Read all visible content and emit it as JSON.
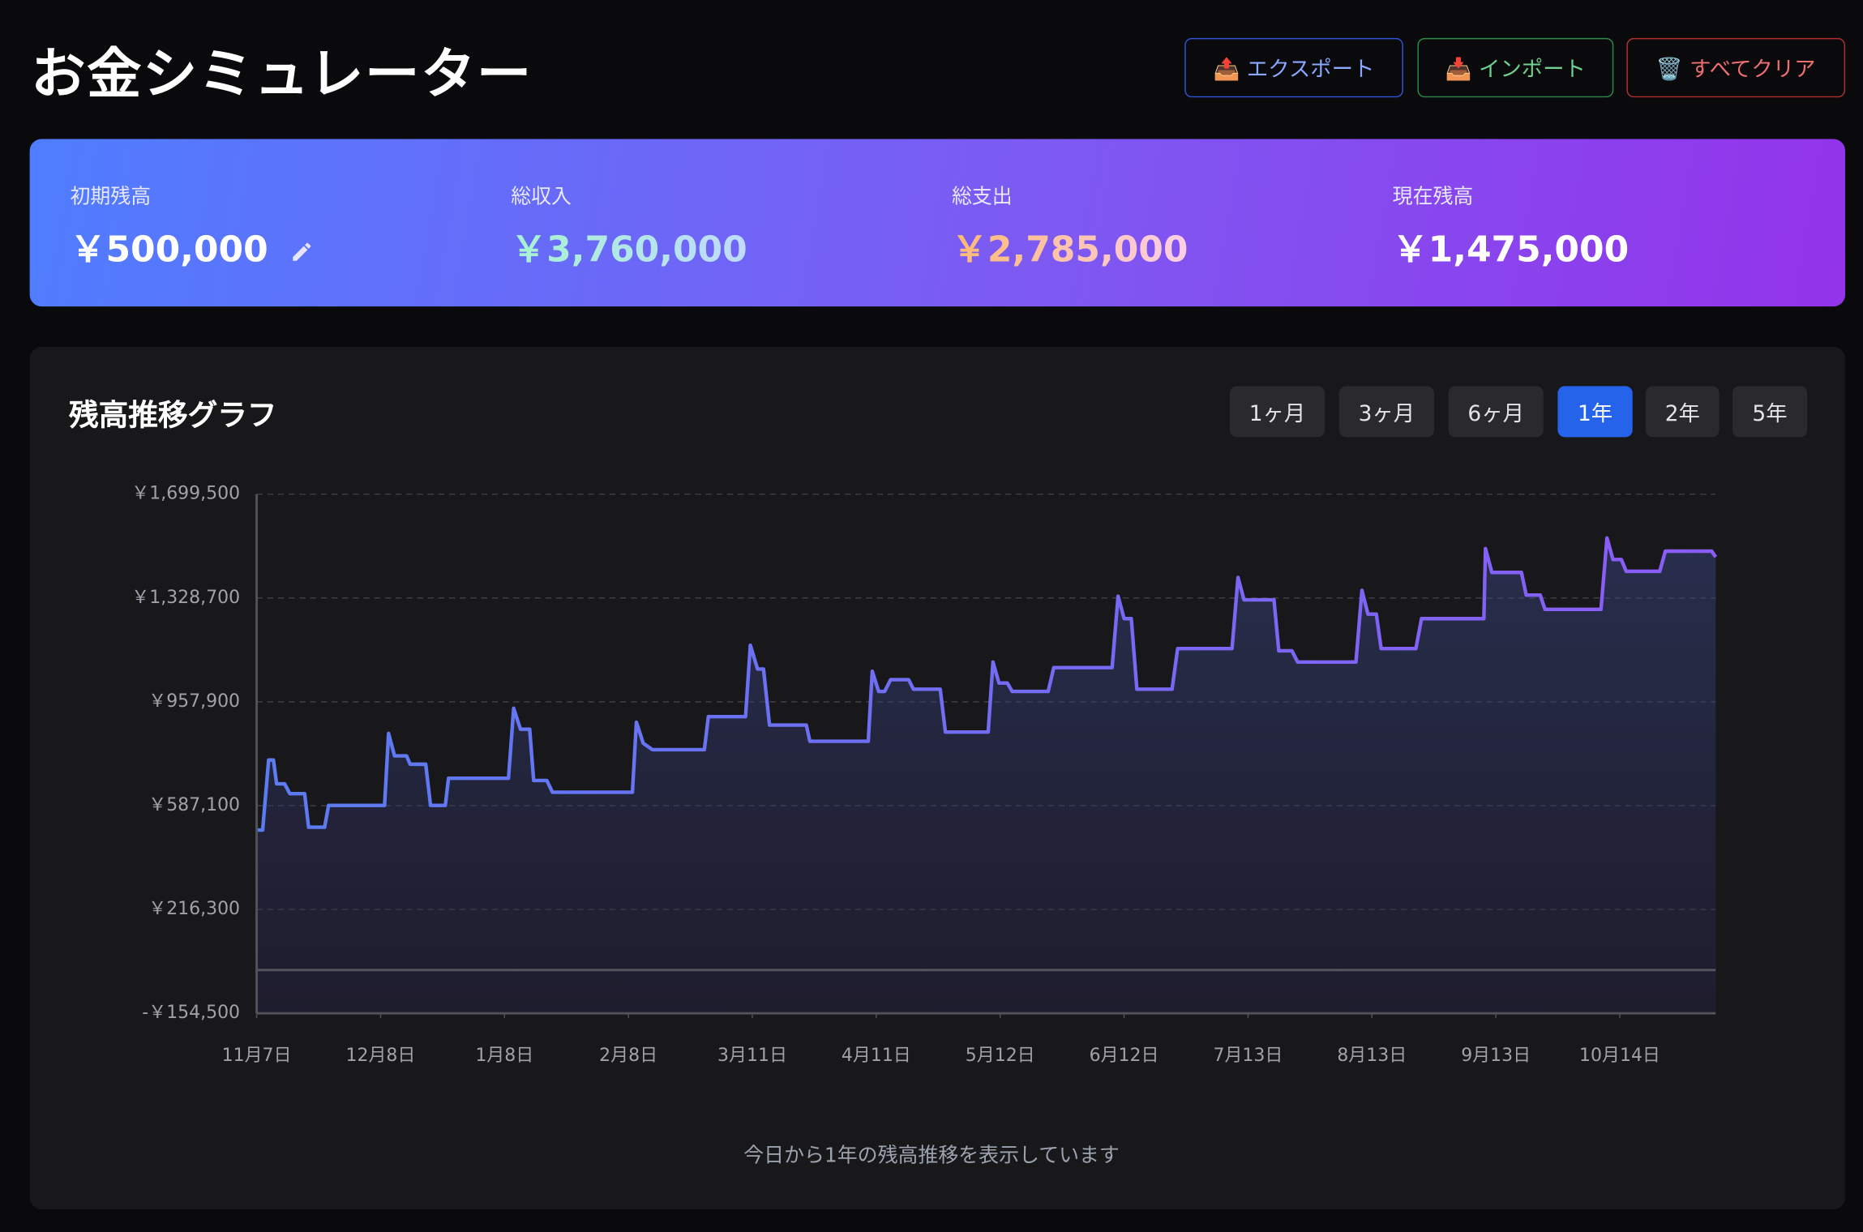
{
  "header": {
    "title": "お金シミュレーター",
    "buttons": [
      "📤 エクスポート",
      "📥 インポート",
      "🗑️ すべてクリア"
    ]
  },
  "summary": {
    "cards": [
      {
        "label": "初期残高",
        "value": "￥500,000"
      },
      {
        "label": "総収入",
        "value": "￥3,760,000"
      },
      {
        "label": "総支出",
        "value": "￥2,785,000"
      },
      {
        "label": "現在残高",
        "value": "￥1,475,000"
      }
    ]
  },
  "range_selector": {
    "options": [
      "1ヶ月",
      "3ヶ月",
      "6ヶ月",
      "1年",
      "2年",
      "5年"
    ],
    "active_index": 3
  },
  "chart_data": {
    "type": "line",
    "title": "残高推移グラフ",
    "xlim": [
      0,
      365
    ],
    "xticks": [
      {
        "value": 0,
        "label": "11月7日"
      },
      {
        "value": 31,
        "label": "12月8日"
      },
      {
        "value": 62,
        "label": "1月8日"
      },
      {
        "value": 93,
        "label": "2月8日"
      },
      {
        "value": 124,
        "label": "3月11日"
      },
      {
        "value": 155,
        "label": "4月11日"
      },
      {
        "value": 186,
        "label": "5月12日"
      },
      {
        "value": 217,
        "label": "6月12日"
      },
      {
        "value": 248,
        "label": "7月13日"
      },
      {
        "value": 279,
        "label": "8月13日"
      },
      {
        "value": 310,
        "label": "9月13日"
      },
      {
        "value": 341,
        "label": "10月14日"
      }
    ],
    "ylim": [
      -154500,
      1699500
    ],
    "yticks": [
      {
        "value": -154500,
        "label": "-￥154,500"
      },
      {
        "value": 216300,
        "label": "￥216,300"
      },
      {
        "value": 587100,
        "label": "￥587,100"
      },
      {
        "value": 957900,
        "label": "￥957,900"
      },
      {
        "value": 1328700,
        "label": "￥1,328,700"
      },
      {
        "value": 1699500,
        "label": "￥1,699,500"
      }
    ],
    "grid": true,
    "series": [
      {
        "name": "残高",
        "color": "#5b7cf0",
        "x": [
          0,
          1.5,
          3,
          4.2,
          5,
          7,
          8.3,
          12,
          13,
          17,
          18,
          32,
          33,
          34.5,
          37.5,
          38.4,
          42.3,
          43.5,
          47.2,
          48,
          63,
          64.3,
          66,
          68.3,
          69.3,
          72.6,
          74,
          94,
          95,
          96.7,
          99,
          112,
          113,
          122.3,
          123.5,
          125.3,
          126.8,
          128.3,
          137.5,
          138.4,
          153,
          154,
          155.6,
          157.1,
          158.6,
          163.1,
          164.3,
          171,
          172.3,
          183,
          184.2,
          185.7,
          187.8,
          189,
          198,
          199.4,
          214,
          215.5,
          217,
          218.8,
          220.2,
          229,
          230.4,
          244,
          245.5,
          247,
          254.5,
          255.7,
          259,
          260.4,
          275,
          276.5,
          278,
          280.1,
          281.3,
          290,
          291.4,
          307,
          307.4,
          309,
          316.4,
          317.6,
          321.1,
          322.3,
          336.3,
          337.8,
          339.3,
          341.4,
          342.6,
          351,
          352.4,
          364,
          365
        ],
        "values": [
          500000,
          500000,
          750000,
          750000,
          665000,
          665000,
          630000,
          630000,
          510000,
          510000,
          588000,
          588000,
          845000,
          765000,
          765000,
          735000,
          735000,
          588000,
          588000,
          685000,
          685000,
          935000,
          860000,
          860000,
          677000,
          677000,
          635000,
          635000,
          885000,
          810000,
          787000,
          787000,
          905000,
          905000,
          1160000,
          1075000,
          1075000,
          875000,
          875000,
          817000,
          817000,
          1067000,
          995000,
          995000,
          1037000,
          1037000,
          1003000,
          1003000,
          850000,
          850000,
          1100000,
          1025000,
          1025000,
          995000,
          995000,
          1080000,
          1080000,
          1335000,
          1255000,
          1255000,
          1003000,
          1003000,
          1148000,
          1148000,
          1402000,
          1322000,
          1322000,
          1140000,
          1140000,
          1100000,
          1100000,
          1356000,
          1271000,
          1271000,
          1148000,
          1148000,
          1255000,
          1255000,
          1505000,
          1420000,
          1420000,
          1339000,
          1339000,
          1288000,
          1288000,
          1543000,
          1466000,
          1466000,
          1424000,
          1424000,
          1496000,
          1496000,
          1475000
        ]
      }
    ]
  },
  "caption": "今日から1年の残高推移を表示しています"
}
